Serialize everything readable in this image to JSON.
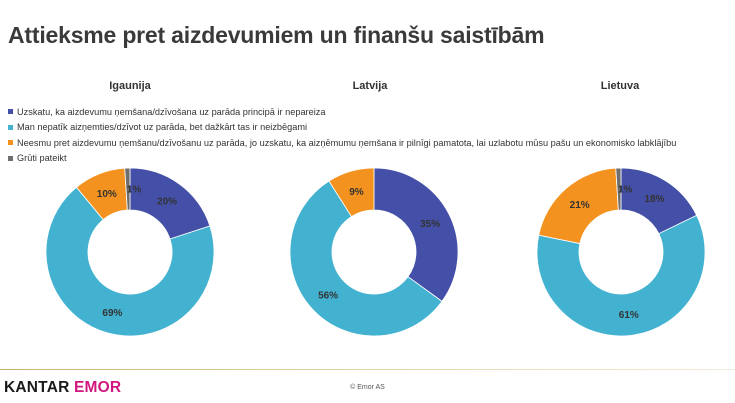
{
  "title": "Attieksme pret aizdevumiem un finanšu saistībām",
  "footer": {
    "logo_kantar": "KANTAR",
    "logo_emor": "EMOR",
    "copyright": "© Emor AS"
  },
  "colors": {
    "series": [
      "#4450a8",
      "#43b2d1",
      "#f3921e",
      "#6e6e6e"
    ]
  },
  "chart_data": {
    "type": "pie",
    "legend_position": "top-left",
    "legend": [
      "Uzskatu, ka aizdevumu ņemšana/dzīvošana uz parāda principā ir nepareiza",
      "Man nepatīk aizņemties/dzīvot uz parāda, bet dažkārt tas ir neizbēgami",
      "Neesmu pret aizdevumu ņemšanu/dzīvošanu uz parāda, jo uzskatu, ka aizņēmumu ņemšana ir pilnīgi pamatota, lai uzlabotu mūsu pašu un ekonomisko labklājību",
      "Grūti pateikt"
    ],
    "charts": [
      {
        "title": "Igaunija",
        "values": [
          20,
          69,
          10,
          1
        ],
        "labels": [
          "20%",
          "69%",
          "10%",
          "1%"
        ]
      },
      {
        "title": "Latvija",
        "values": [
          35,
          56,
          9,
          0
        ],
        "labels": [
          "35%",
          "56%",
          "9%",
          ""
        ]
      },
      {
        "title": "Lietuva",
        "values": [
          18,
          61,
          21,
          1
        ],
        "labels": [
          "18%",
          "61%",
          "21%",
          "1%"
        ]
      }
    ]
  }
}
